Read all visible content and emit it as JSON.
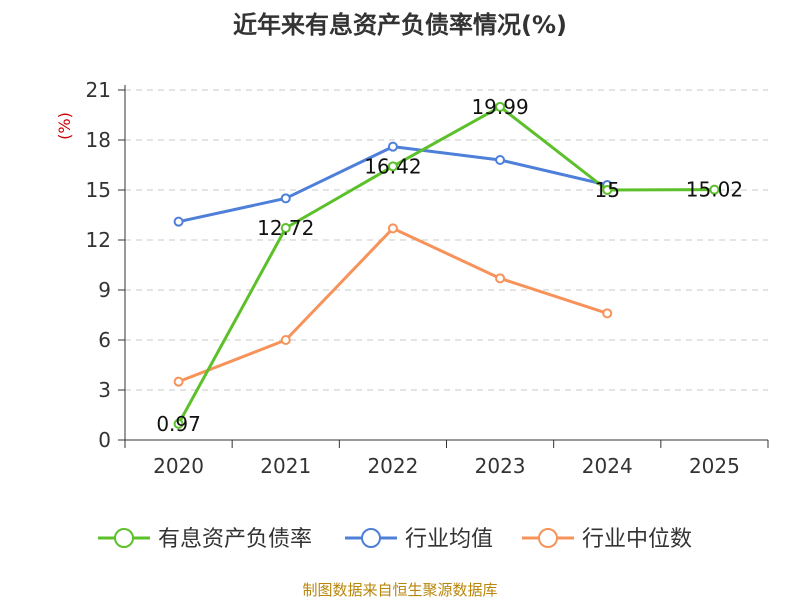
{
  "chart_data": {
    "type": "line",
    "title": "近年来有息资产负债率情况(%)",
    "ylabel": "(%)",
    "xlabel": "",
    "categories": [
      "2020",
      "2021",
      "2022",
      "2023",
      "2024",
      "2025"
    ],
    "yticks": [
      0,
      3,
      6,
      9,
      12,
      15,
      18,
      21
    ],
    "ylim": [
      0,
      21
    ],
    "grid": true,
    "legend_position": "bottom",
    "series": [
      {
        "name": "有息资产负债率",
        "color": "#5cc02a",
        "values": [
          0.97,
          12.72,
          16.42,
          19.99,
          15,
          15.02
        ],
        "labels": [
          "0.97",
          "12.72",
          "16.42",
          "19.99",
          "15",
          "15.02"
        ]
      },
      {
        "name": "行业均值",
        "color": "#4e7fd9",
        "values": [
          13.1,
          14.5,
          17.6,
          16.8,
          15.3,
          null
        ]
      },
      {
        "name": "行业中位数",
        "color": "#f7935a",
        "values": [
          3.5,
          6.0,
          12.7,
          9.7,
          7.6,
          null
        ]
      }
    ]
  },
  "source": "制图数据来自恒生聚源数据库"
}
